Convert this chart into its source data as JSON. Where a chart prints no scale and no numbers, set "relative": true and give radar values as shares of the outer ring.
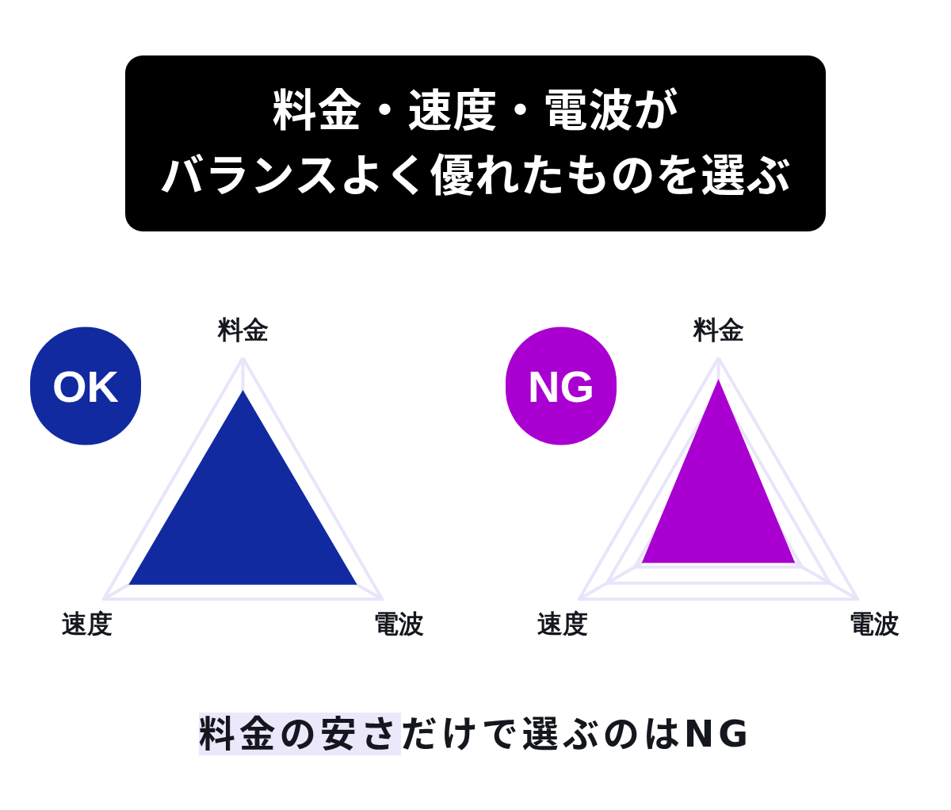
{
  "chart_data": [
    {
      "type": "radar",
      "title": "料金・速度・電波がバランスよく優れたものを選ぶ",
      "subtitle": "OK",
      "categories": [
        "料金",
        "電波",
        "速度"
      ],
      "series": [
        {
          "color": "#112aa0",
          "values": [
            0.8,
            0.82,
            0.82
          ]
        }
      ],
      "relative": true,
      "grid": true
    },
    {
      "type": "radar",
      "subtitle": "NG",
      "categories": [
        "料金",
        "電波",
        "速度"
      ],
      "series": [
        {
          "color": "#a900d1",
          "values": [
            0.87,
            0.55,
            0.55
          ]
        }
      ],
      "relative": true,
      "grid": true,
      "annotations": [
        "料金の安さ",
        "だけで選ぶのはNG"
      ]
    }
  ]
}
